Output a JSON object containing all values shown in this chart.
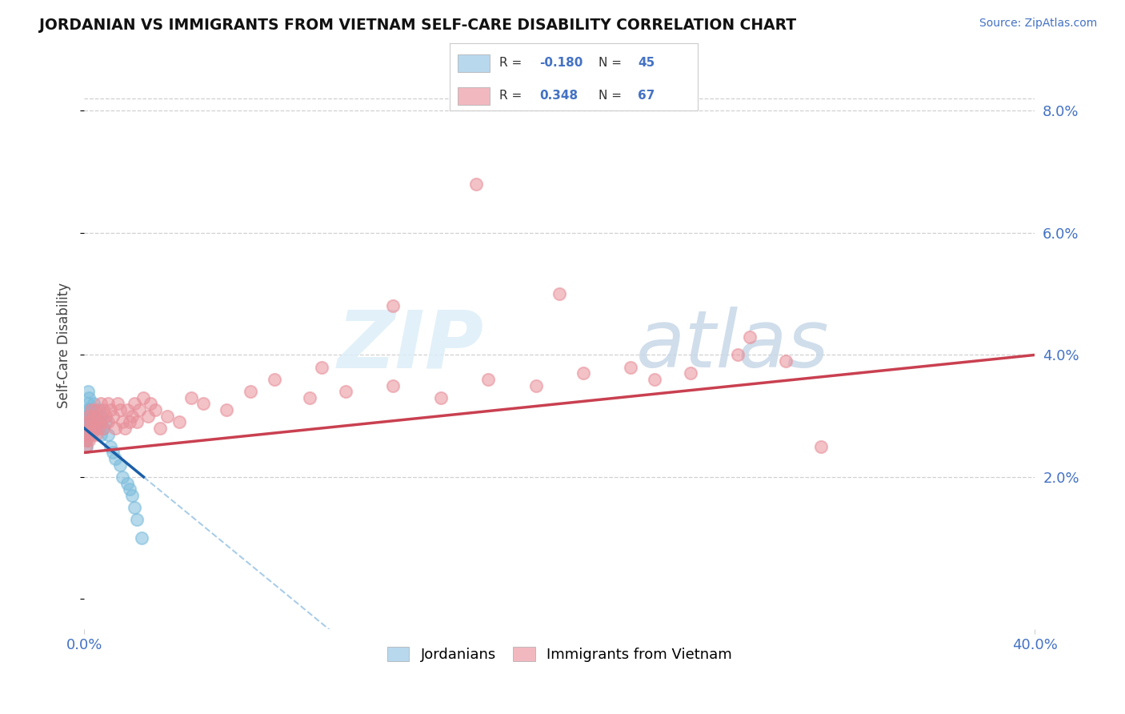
{
  "title": "JORDANIAN VS IMMIGRANTS FROM VIETNAM SELF-CARE DISABILITY CORRELATION CHART",
  "source": "Source: ZipAtlas.com",
  "ylabel": "Self-Care Disability",
  "xlim": [
    0.0,
    0.4
  ],
  "ylim": [
    -0.005,
    0.088
  ],
  "yticks": [
    0.02,
    0.04,
    0.06,
    0.08
  ],
  "ytick_labels": [
    "2.0%",
    "4.0%",
    "6.0%",
    "8.0%"
  ],
  "xtick_left": "0.0%",
  "xtick_right": "40.0%",
  "r_jordan": -0.18,
  "n_jordan": 45,
  "r_vietnam": 0.348,
  "n_vietnam": 67,
  "jordan_dot_color": "#7bbcdc",
  "vietnam_dot_color": "#e8909a",
  "jordan_trend_color": "#1a5ea8",
  "vietnam_trend_color": "#c94050",
  "jordan_trend_ext_color": "#aacde8",
  "legend_jordan_fill": "#b8d8ee",
  "legend_vietnam_fill": "#f2b8c0",
  "watermark_color": "#d8eef8",
  "grid_color": "#d0d0d0",
  "background": "#ffffff",
  "r_text_color": "#4472C4",
  "bottom_legend_jordan": "Jordanians",
  "bottom_legend_vietnam": "Immigrants from Vietnam",
  "jordanians_x": [
    0.0005,
    0.0005,
    0.001,
    0.001,
    0.001,
    0.001,
    0.001,
    0.001,
    0.001,
    0.001,
    0.0015,
    0.0015,
    0.002,
    0.002,
    0.002,
    0.002,
    0.002,
    0.002,
    0.003,
    0.003,
    0.003,
    0.003,
    0.004,
    0.004,
    0.004,
    0.005,
    0.005,
    0.006,
    0.006,
    0.007,
    0.007,
    0.008,
    0.009,
    0.01,
    0.011,
    0.012,
    0.013,
    0.015,
    0.016,
    0.018,
    0.019,
    0.02,
    0.021,
    0.022,
    0.024
  ],
  "jordanians_y": [
    0.027,
    0.028,
    0.03,
    0.031,
    0.028,
    0.029,
    0.027,
    0.026,
    0.025,
    0.03,
    0.032,
    0.034,
    0.03,
    0.029,
    0.028,
    0.031,
    0.027,
    0.033,
    0.028,
    0.03,
    0.029,
    0.031,
    0.029,
    0.028,
    0.032,
    0.03,
    0.028,
    0.031,
    0.029,
    0.03,
    0.027,
    0.028,
    0.029,
    0.027,
    0.025,
    0.024,
    0.023,
    0.022,
    0.02,
    0.019,
    0.018,
    0.017,
    0.015,
    0.013,
    0.01
  ],
  "vietnam_x": [
    0.0005,
    0.001,
    0.001,
    0.001,
    0.002,
    0.002,
    0.002,
    0.003,
    0.003,
    0.003,
    0.004,
    0.004,
    0.005,
    0.005,
    0.005,
    0.006,
    0.006,
    0.007,
    0.007,
    0.008,
    0.008,
    0.009,
    0.01,
    0.01,
    0.011,
    0.012,
    0.013,
    0.014,
    0.015,
    0.016,
    0.017,
    0.018,
    0.019,
    0.02,
    0.021,
    0.022,
    0.023,
    0.025,
    0.027,
    0.028,
    0.03,
    0.032,
    0.035,
    0.04,
    0.045,
    0.05,
    0.06,
    0.07,
    0.08,
    0.095,
    0.11,
    0.13,
    0.15,
    0.17,
    0.19,
    0.21,
    0.23,
    0.255,
    0.275,
    0.295,
    0.13,
    0.2,
    0.28,
    0.165,
    0.1,
    0.24,
    0.31
  ],
  "vietnam_y": [
    0.025,
    0.027,
    0.029,
    0.026,
    0.028,
    0.03,
    0.026,
    0.027,
    0.029,
    0.031,
    0.028,
    0.03,
    0.027,
    0.031,
    0.029,
    0.03,
    0.028,
    0.032,
    0.029,
    0.031,
    0.028,
    0.03,
    0.032,
    0.029,
    0.031,
    0.03,
    0.028,
    0.032,
    0.031,
    0.029,
    0.028,
    0.031,
    0.029,
    0.03,
    0.032,
    0.029,
    0.031,
    0.033,
    0.03,
    0.032,
    0.031,
    0.028,
    0.03,
    0.029,
    0.033,
    0.032,
    0.031,
    0.034,
    0.036,
    0.033,
    0.034,
    0.035,
    0.033,
    0.036,
    0.035,
    0.037,
    0.038,
    0.037,
    0.04,
    0.039,
    0.048,
    0.05,
    0.043,
    0.068,
    0.038,
    0.036,
    0.025
  ]
}
